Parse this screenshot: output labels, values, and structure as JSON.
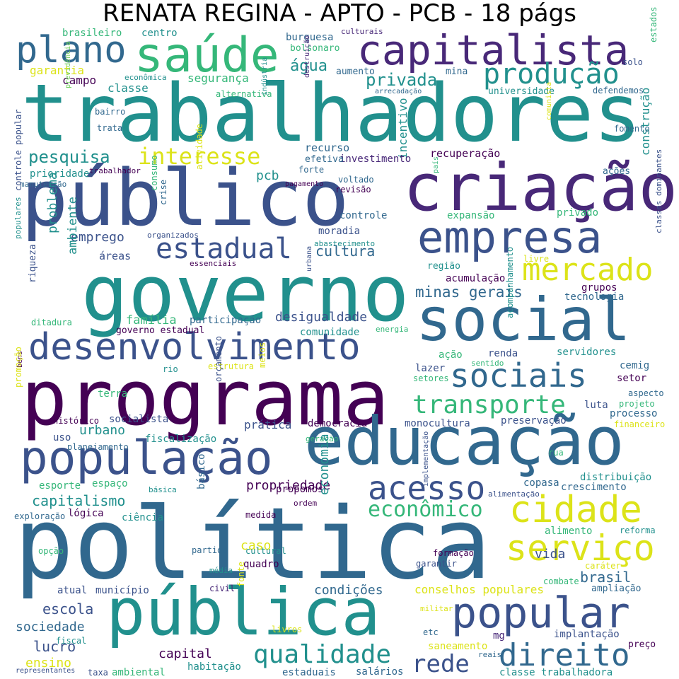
{
  "title": "RENATA REGINA - APTO - PCB - 18 págs",
  "palette": {
    "dark_purple": "#440154",
    "indigo": "#3b528b",
    "blue": "#31688e",
    "teal": "#21908d",
    "green": "#35b779",
    "light_green": "#6ece58",
    "yellow": "#dce319"
  },
  "words": [
    {
      "text": "trabalhadores",
      "color": "#21908d"
    },
    {
      "text": "política",
      "color": "#31688e"
    },
    {
      "text": "programa",
      "color": "#440154"
    },
    {
      "text": "governo",
      "color": "#21908d"
    },
    {
      "text": "público",
      "color": "#3b528b"
    },
    {
      "text": "criação",
      "color": "#482878"
    },
    {
      "text": "educação",
      "color": "#31688e"
    },
    {
      "text": "social",
      "color": "#31688e"
    },
    {
      "text": "pública",
      "color": "#21908d"
    },
    {
      "text": "saúde",
      "color": "#35b779"
    },
    {
      "text": "capitalista",
      "color": "#482878"
    },
    {
      "text": "população",
      "color": "#3b528b"
    },
    {
      "text": "desenvolvimento",
      "color": "#3b528b"
    },
    {
      "text": "empresa",
      "color": "#3b528b"
    },
    {
      "text": "plano",
      "color": "#31688e"
    },
    {
      "text": "popular",
      "color": "#3b528b"
    },
    {
      "text": "produção",
      "color": "#21908d"
    },
    {
      "text": "sociais",
      "color": "#31688e"
    },
    {
      "text": "cidade",
      "color": "#dce319"
    },
    {
      "text": "serviço",
      "color": "#dce319"
    },
    {
      "text": "estadual",
      "color": "#3b528b"
    },
    {
      "text": "mercado",
      "color": "#dce319"
    },
    {
      "text": "acesso",
      "color": "#3b528b"
    },
    {
      "text": "direito",
      "color": "#31688e"
    },
    {
      "text": "transporte",
      "color": "#35b779"
    },
    {
      "text": "interesse",
      "color": "#dce319"
    },
    {
      "text": "qualidade",
      "color": "#21908d"
    },
    {
      "text": "rede",
      "color": "#3b528b"
    },
    {
      "text": "econômico",
      "color": "#35b779"
    },
    {
      "text": "pesquisa",
      "color": "#21908d"
    },
    {
      "text": "privada",
      "color": "#21908d"
    },
    {
      "text": "água",
      "color": "#21908d"
    },
    {
      "text": "minas gerais",
      "color": "#31688e"
    },
    {
      "text": "cultura",
      "color": "#31688e"
    },
    {
      "text": "desigualdade",
      "color": "#3b528b"
    },
    {
      "text": "construção",
      "color": "#21908d"
    },
    {
      "text": "incentivo",
      "color": "#21908d"
    },
    {
      "text": "família",
      "color": "#35b779"
    },
    {
      "text": "problema",
      "color": "#21908d"
    },
    {
      "text": "emprego",
      "color": "#3b528b"
    },
    {
      "text": "ambiente",
      "color": "#21908d"
    },
    {
      "text": "pcb",
      "color": "#21908d"
    },
    {
      "text": "recurso",
      "color": "#31688e"
    },
    {
      "text": "recuperação",
      "color": "#440154"
    },
    {
      "text": "investimento",
      "color": "#482878"
    },
    {
      "text": "garantia",
      "color": "#dce319"
    },
    {
      "text": "classe",
      "color": "#21908d"
    },
    {
      "text": "segurança",
      "color": "#35b779"
    },
    {
      "text": "campo",
      "color": "#440154"
    },
    {
      "text": "centro",
      "color": "#21908d"
    },
    {
      "text": "brasileiro",
      "color": "#35b779"
    },
    {
      "text": "burguesa",
      "color": "#31688e"
    },
    {
      "text": "bolsonaro",
      "color": "#35b779"
    },
    {
      "text": "culturais",
      "color": "#482878"
    },
    {
      "text": "aumento",
      "color": "#31688e"
    },
    {
      "text": "mina",
      "color": "#31688e"
    },
    {
      "text": "solo",
      "color": "#3b528b"
    },
    {
      "text": "estados",
      "color": "#35b779"
    },
    {
      "text": "universidade",
      "color": "#21908d"
    },
    {
      "text": "defendemos",
      "color": "#31688e"
    },
    {
      "text": "econômica",
      "color": "#21908d"
    },
    {
      "text": "alternativa",
      "color": "#35b779"
    },
    {
      "text": "arrecadação",
      "color": "#31688e"
    },
    {
      "text": "destruição",
      "color": "#482878"
    },
    {
      "text": "indústria",
      "color": "#21908d"
    },
    {
      "text": "previdência",
      "color": "#6ece58"
    },
    {
      "text": "bairro",
      "color": "#31688e"
    },
    {
      "text": "trata",
      "color": "#31688e"
    },
    {
      "text": "fomento",
      "color": "#31688e"
    },
    {
      "text": "comunista",
      "color": "#dce319"
    },
    {
      "text": "ações",
      "color": "#31688e"
    },
    {
      "text": "efetiva",
      "color": "#31688e"
    },
    {
      "text": "forte",
      "color": "#31688e"
    },
    {
      "text": "prioridade",
      "color": "#21908d"
    },
    {
      "text": "trabalhador",
      "color": "#440154"
    },
    {
      "text": "manutenção",
      "color": "#31688e"
    },
    {
      "text": "consumo",
      "color": "#35b779"
    },
    {
      "text": "atividade",
      "color": "#dce319"
    },
    {
      "text": "crise",
      "color": "#31688e"
    },
    {
      "text": "pagamento",
      "color": "#440154"
    },
    {
      "text": "voltado",
      "color": "#31688e"
    },
    {
      "text": "revisão",
      "color": "#440154"
    },
    {
      "text": "país",
      "color": "#35b779"
    },
    {
      "text": "expansão",
      "color": "#35b779"
    },
    {
      "text": "privado",
      "color": "#35b779"
    },
    {
      "text": "controle",
      "color": "#31688e"
    },
    {
      "text": "moradia",
      "color": "#3b528b"
    },
    {
      "text": "abastecimento",
      "color": "#21908d"
    },
    {
      "text": "organizados",
      "color": "#3b528b"
    },
    {
      "text": "controle popular",
      "color": "#3b528b"
    },
    {
      "text": "populares",
      "color": "#21908d"
    },
    {
      "text": "riqueza",
      "color": "#3b528b"
    },
    {
      "text": "áreas",
      "color": "#3b528b"
    },
    {
      "text": "essenciais",
      "color": "#440154"
    },
    {
      "text": "livre",
      "color": "#dce319"
    },
    {
      "text": "região",
      "color": "#21908d"
    },
    {
      "text": "acumulação",
      "color": "#440154"
    },
    {
      "text": "grupos",
      "color": "#440154"
    },
    {
      "text": "tecnologia",
      "color": "#31688e"
    },
    {
      "text": "classes dominantes",
      "color": "#3b528b"
    },
    {
      "text": "participação",
      "color": "#31688e"
    },
    {
      "text": "urbana",
      "color": "#3b528b"
    },
    {
      "text": "ditadura",
      "color": "#35b779"
    },
    {
      "text": "governo estadual",
      "color": "#440154"
    },
    {
      "text": "comunidade",
      "color": "#21908d"
    },
    {
      "text": "energia",
      "color": "#35b779"
    },
    {
      "text": "acompanhamento",
      "color": "#21908d"
    },
    {
      "text": "renda",
      "color": "#3b528b"
    },
    {
      "text": "servidores",
      "color": "#21908d"
    },
    {
      "text": "ação",
      "color": "#35b779"
    },
    {
      "text": "sentido",
      "color": "#35b779"
    },
    {
      "text": "bens",
      "color": "#440154"
    },
    {
      "text": "rio",
      "color": "#21908d"
    },
    {
      "text": "estrutura",
      "color": "#dce319"
    },
    {
      "text": "lazer",
      "color": "#3b528b"
    },
    {
      "text": "cemig",
      "color": "#31688e"
    },
    {
      "text": "setores",
      "color": "#35b779"
    },
    {
      "text": "setor",
      "color": "#440154"
    },
    {
      "text": "terra",
      "color": "#35b779"
    },
    {
      "text": "meios",
      "color": "#dce319"
    },
    {
      "text": "aspecto",
      "color": "#31688e"
    },
    {
      "text": "projeto",
      "color": "#35b779"
    },
    {
      "text": "promoção",
      "color": "#dce319"
    },
    {
      "text": "socialista",
      "color": "#3b528b"
    },
    {
      "text": "orçamento",
      "color": "#3b528b"
    },
    {
      "text": "luta",
      "color": "#3b528b"
    },
    {
      "text": "processo",
      "color": "#31688e"
    },
    {
      "text": "histórico",
      "color": "#440154"
    },
    {
      "text": "prática",
      "color": "#3b528b"
    },
    {
      "text": "democracia",
      "color": "#440154"
    },
    {
      "text": "monocultura",
      "color": "#3b528b"
    },
    {
      "text": "preservação",
      "color": "#3b528b"
    },
    {
      "text": "financeiro",
      "color": "#dce319"
    },
    {
      "text": "urbano",
      "color": "#21908d"
    },
    {
      "text": "uso",
      "color": "#3b528b"
    },
    {
      "text": "planejamento",
      "color": "#31688e"
    },
    {
      "text": "fiscalização",
      "color": "#21908d"
    },
    {
      "text": "geração",
      "color": "#35b779"
    },
    {
      "text": "rua",
      "color": "#35b779"
    },
    {
      "text": "distribuição",
      "color": "#21908d"
    },
    {
      "text": "esporte",
      "color": "#35b779"
    },
    {
      "text": "espaço",
      "color": "#35b779"
    },
    {
      "text": "propriedade",
      "color": "#440154"
    },
    {
      "text": "propomos",
      "color": "#440154"
    },
    {
      "text": "copasa",
      "color": "#31688e"
    },
    {
      "text": "crescimento",
      "color": "#31688e"
    },
    {
      "text": "básica",
      "color": "#21908d"
    },
    {
      "text": "ordem",
      "color": "#440154"
    },
    {
      "text": "alimentação",
      "color": "#3b528b"
    },
    {
      "text": "capitalismo",
      "color": "#21908d"
    },
    {
      "text": "lógica",
      "color": "#440154"
    },
    {
      "text": "básico",
      "color": "#31688e"
    },
    {
      "text": "medida",
      "color": "#440154"
    },
    {
      "text": "exploração",
      "color": "#31688e"
    },
    {
      "text": "ciência",
      "color": "#21908d"
    },
    {
      "text": "economia",
      "color": "#21908d"
    },
    {
      "text": "alimento",
      "color": "#35b779"
    },
    {
      "text": "reforma",
      "color": "#21908d"
    },
    {
      "text": "implementação",
      "color": "#3b528b"
    },
    {
      "text": "opção",
      "color": "#35b779"
    },
    {
      "text": "caso",
      "color": "#dce319"
    },
    {
      "text": "partido",
      "color": "#31688e"
    },
    {
      "text": "cultural",
      "color": "#21908d"
    },
    {
      "text": "formação",
      "color": "#440154"
    },
    {
      "text": "garantir",
      "color": "#3b528b"
    },
    {
      "text": "quadro",
      "color": "#440154"
    },
    {
      "text": "média",
      "color": "#21908d"
    },
    {
      "text": "caráter",
      "color": "#dce319"
    },
    {
      "text": "vida",
      "color": "#3b528b"
    },
    {
      "text": "brasil",
      "color": "#31688e"
    },
    {
      "text": "combate",
      "color": "#35b779"
    },
    {
      "text": "ampliação",
      "color": "#31688e"
    },
    {
      "text": "atual",
      "color": "#3b528b"
    },
    {
      "text": "município",
      "color": "#3b528b"
    },
    {
      "text": "civil",
      "color": "#482878"
    },
    {
      "text": "condições",
      "color": "#31688e"
    },
    {
      "text": "conselhos populares",
      "color": "#dce319"
    },
    {
      "text": "escola",
      "color": "#3b528b"
    },
    {
      "text": "militar",
      "color": "#dce319"
    },
    {
      "text": "fonte",
      "color": "#dce319"
    },
    {
      "text": "sociedade",
      "color": "#31688e"
    },
    {
      "text": "fiscal",
      "color": "#21908d"
    },
    {
      "text": "livros",
      "color": "#dce319"
    },
    {
      "text": "etc",
      "color": "#31688e"
    },
    {
      "text": "mg",
      "color": "#482878"
    },
    {
      "text": "implantação",
      "color": "#3b528b"
    },
    {
      "text": "preço",
      "color": "#440154"
    },
    {
      "text": "lucro",
      "color": "#3b528b"
    },
    {
      "text": "capital",
      "color": "#440154"
    },
    {
      "text": "saneamento",
      "color": "#dce319"
    },
    {
      "text": "reais",
      "color": "#31688e"
    },
    {
      "text": "ensino",
      "color": "#dce319"
    },
    {
      "text": "habitação",
      "color": "#21908d"
    },
    {
      "text": "representantes",
      "color": "#3b528b"
    },
    {
      "text": "taxa",
      "color": "#3b528b"
    },
    {
      "text": "ambiental",
      "color": "#35b779"
    },
    {
      "text": "estaduais",
      "color": "#31688e"
    },
    {
      "text": "salários",
      "color": "#31688e"
    },
    {
      "text": "classe trabalhadora",
      "color": "#21908d"
    }
  ]
}
